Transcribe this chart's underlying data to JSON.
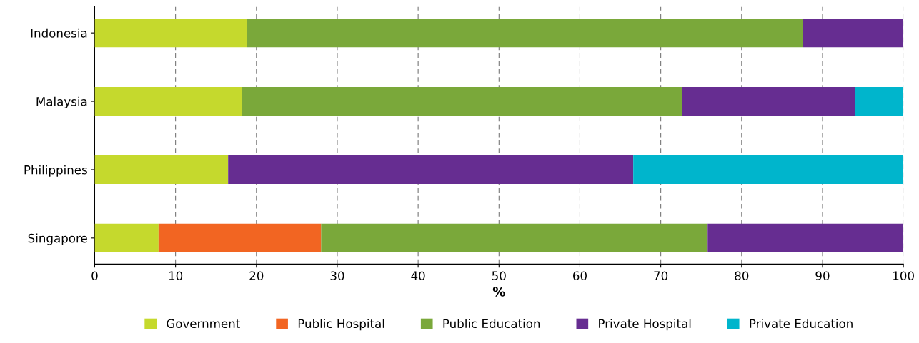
{
  "chart_data": {
    "type": "bar",
    "orientation": "horizontal",
    "stacked": true,
    "categories": [
      "Indonesia",
      "Malaysia",
      "Philippines",
      "Singapore"
    ],
    "series": [
      {
        "name": "Government",
        "color": "#c5d92d",
        "values": [
          18.8,
          18.2,
          16.5,
          7.9
        ]
      },
      {
        "name": "Public Hospital",
        "color": "#f26522",
        "values": [
          null,
          null,
          null,
          20.1
        ]
      },
      {
        "name": "Public Education",
        "color": "#7aa83a",
        "values": [
          68.8,
          54.4,
          null,
          47.8
        ]
      },
      {
        "name": "Private Hospital",
        "color": "#662d91",
        "values": [
          12.4,
          21.4,
          50.1,
          24.2
        ]
      },
      {
        "name": "Private Education",
        "color": "#00b5cc",
        "values": [
          null,
          6.0,
          33.4,
          null
        ]
      }
    ],
    "xlabel": "%",
    "xlim": [
      0,
      100
    ],
    "xticks": [
      0,
      10,
      20,
      30,
      40,
      50,
      60,
      70,
      80,
      90,
      100
    ],
    "grid": "x",
    "legend": "bottom"
  }
}
